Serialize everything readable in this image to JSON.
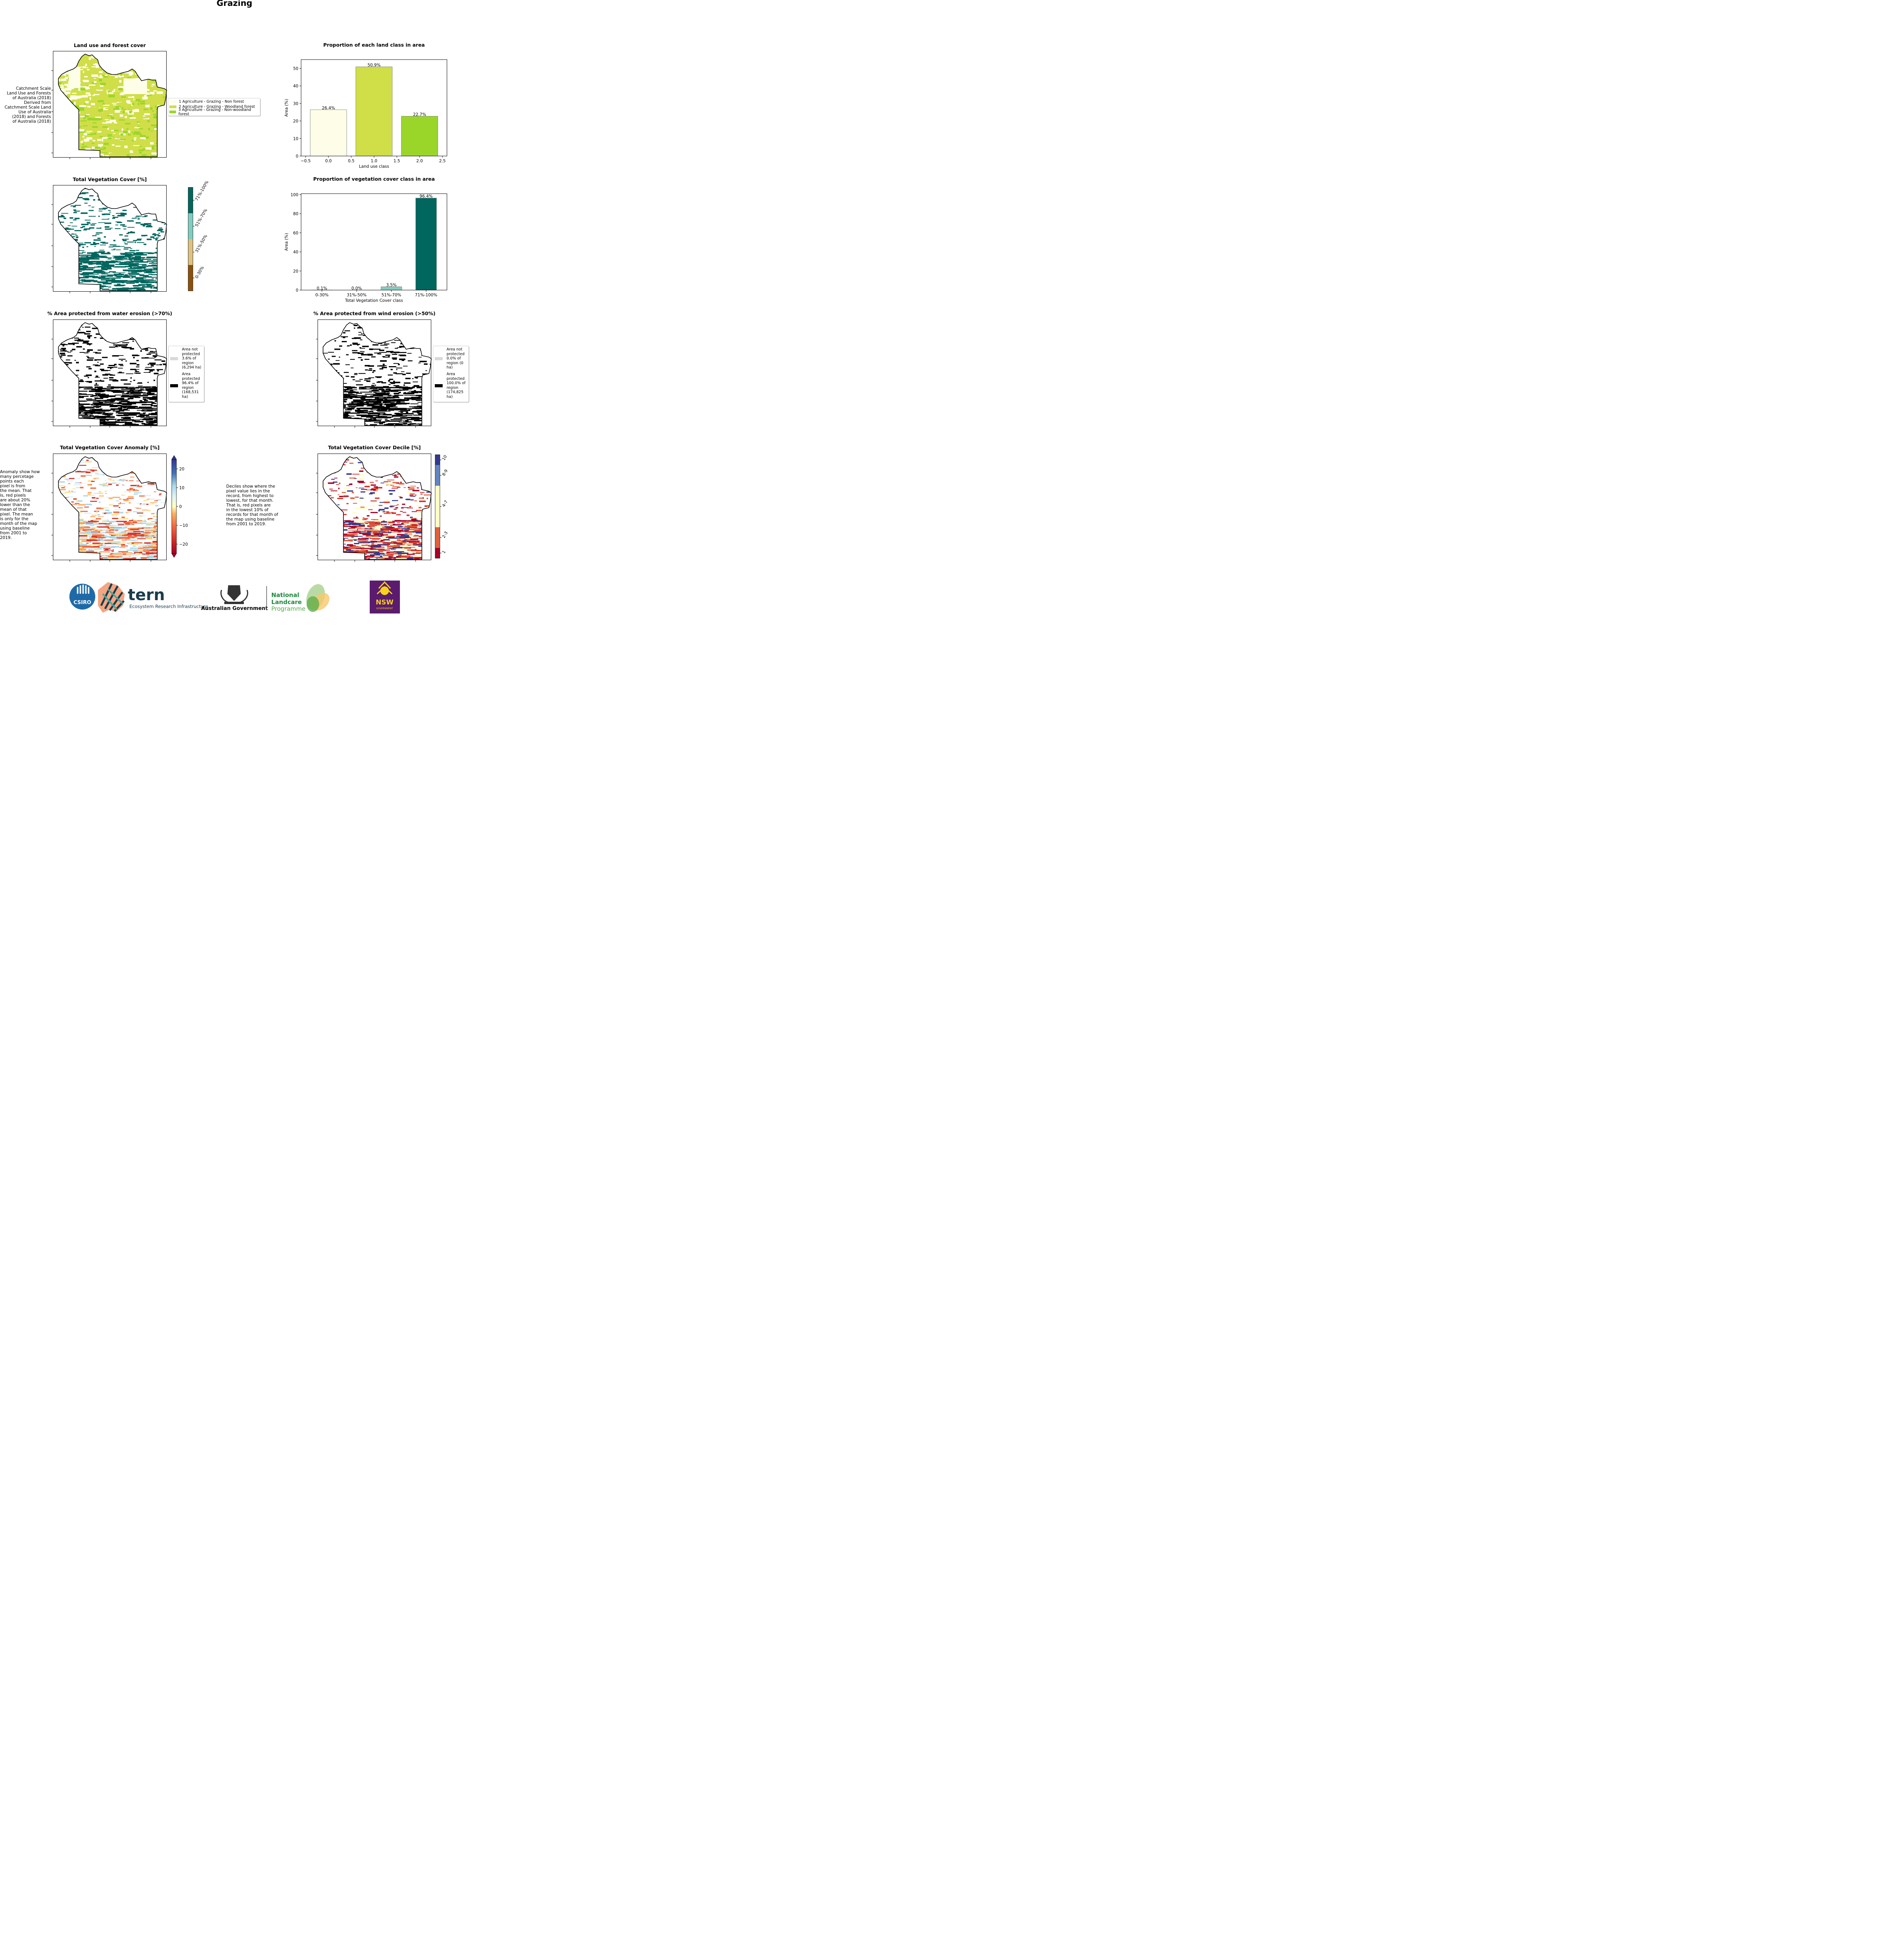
{
  "page_title": "Grazing",
  "panels": {
    "landuse_map": {
      "title": "Land use and forest cover",
      "side_text": "Catchment Scale\nLand Use and Forests\nof Australia (2018)\nDerived from\nCatchment Scale Land\nUse of Australia\n(2018) and Forests\nof Australia (2018)",
      "legend": [
        {
          "label": "1 Agriculture - Grazing - Non forest",
          "color": "#fefee8"
        },
        {
          "label": "2 Agriculture - Grazing - Woodland forest",
          "color": "#d0de48"
        },
        {
          "label": "3 Agriculture - Grazing - Non-woodland forest",
          "color": "#9ad62a"
        }
      ]
    },
    "tvc_map": {
      "title": "Total Vegetation Cover [%]",
      "colorbar": [
        {
          "label": "0-30%",
          "color": "#8c510a"
        },
        {
          "label": "31%-50%",
          "color": "#dfc27d"
        },
        {
          "label": "51%-70%",
          "color": "#80cdc1"
        },
        {
          "label": "71%-100%",
          "color": "#01665e"
        }
      ]
    },
    "water_map": {
      "title": "% Area protected from water erosion (>70%)",
      "legend": [
        {
          "label": "Area not\nprotected\n3.6% of\nregion\n(6,294 ha)",
          "color": "#d9d9d9"
        },
        {
          "label": "Area\nprotected\n96.4% of\nregion\n(168,531\nha)",
          "color": "#000000"
        }
      ]
    },
    "wind_map": {
      "title": "% Area protected from wind erosion (>50%)",
      "legend": [
        {
          "label": "Area not\nprotected\n0.0% of\nregion (0\nha)",
          "color": "#d9d9d9"
        },
        {
          "label": "Area\nprotected\n100.0% of\nregion\n(174,825\nha)",
          "color": "#000000"
        }
      ]
    },
    "anomaly_map": {
      "title": "Total Vegetation Cover Anomaly [%]",
      "side_text": "Anomaly show how\nmany percetage\npoints each\npixel is from\nthe mean. That\nis, red pixels\nare about 20%\nlower than the\nmean of that\npixel. The mean\nis only for the\nmonth of the map\nusing baseline\nfrom 2001 to\n2019.",
      "colorbar_ticks": [
        "20",
        "10",
        "0",
        "−10",
        "−20"
      ]
    },
    "decile_map": {
      "title": "Total Vegetation Cover Decile [%]",
      "side_text": "Deciles show where the\npixel value lies in the\nrecord, from highest to\nlowest, for that month.\nThat is, red pixels are\nin the lowest 10% of\nrecords for that month of\nthe map using baseline\nfrom 2001 to 2019.",
      "colorbar": [
        {
          "label": "1",
          "color": "#a50026"
        },
        {
          "label": "2-3",
          "color": "#e0613c"
        },
        {
          "label": "4-7",
          "color": "#fefdc2"
        },
        {
          "label": "8-9",
          "color": "#6385bf"
        },
        {
          "label": "10",
          "color": "#323a8e"
        }
      ]
    }
  },
  "chart_data": [
    {
      "type": "bar",
      "title": "Proportion of each land class in area",
      "xlabel": "Land use class",
      "ylabel": "Area (%)",
      "x": [
        0.0,
        1.0,
        2.0
      ],
      "values": [
        26.4,
        50.9,
        22.7
      ],
      "bar_labels": [
        "26.4%",
        "50.9%",
        "22.7%"
      ],
      "colors": [
        "#fefee8",
        "#d0de48",
        "#9ad62a"
      ],
      "xlim": [
        -0.6,
        2.6
      ],
      "ylim": [
        0,
        55
      ],
      "xticks": [
        "−0.5",
        "0.0",
        "0.5",
        "1.0",
        "1.5",
        "2.0",
        "2.5"
      ],
      "yticks": [
        "0",
        "10",
        "20",
        "30",
        "40",
        "50"
      ]
    },
    {
      "type": "bar",
      "title": "Proportion of vegetation cover class in area",
      "xlabel": "Total Vegetation Cover class",
      "ylabel": "Area (%)",
      "categories": [
        "0-30%",
        "31%-50%",
        "51%-70%",
        "71%-100%"
      ],
      "values": [
        0.1,
        0.0,
        3.5,
        96.4
      ],
      "bar_labels": [
        "0.1%",
        "0.0%",
        "3.5%",
        "96.4%"
      ],
      "colors": [
        "#8c510a",
        "#dfc27d",
        "#80cdc1",
        "#01665e"
      ],
      "ylim": [
        0,
        101
      ],
      "yticks": [
        "0",
        "20",
        "40",
        "60",
        "80",
        "100"
      ]
    }
  ],
  "logos": {
    "csiro": "CSIRO",
    "tern": "tern",
    "tern_sub": "Ecosystem Research Infrastructure",
    "aus_gov": "Australian Government",
    "landcare1": "National",
    "landcare2": "Landcare",
    "landcare3": "Programme",
    "nsw": "NSW",
    "nsw_sub": "GOVERNMENT"
  }
}
